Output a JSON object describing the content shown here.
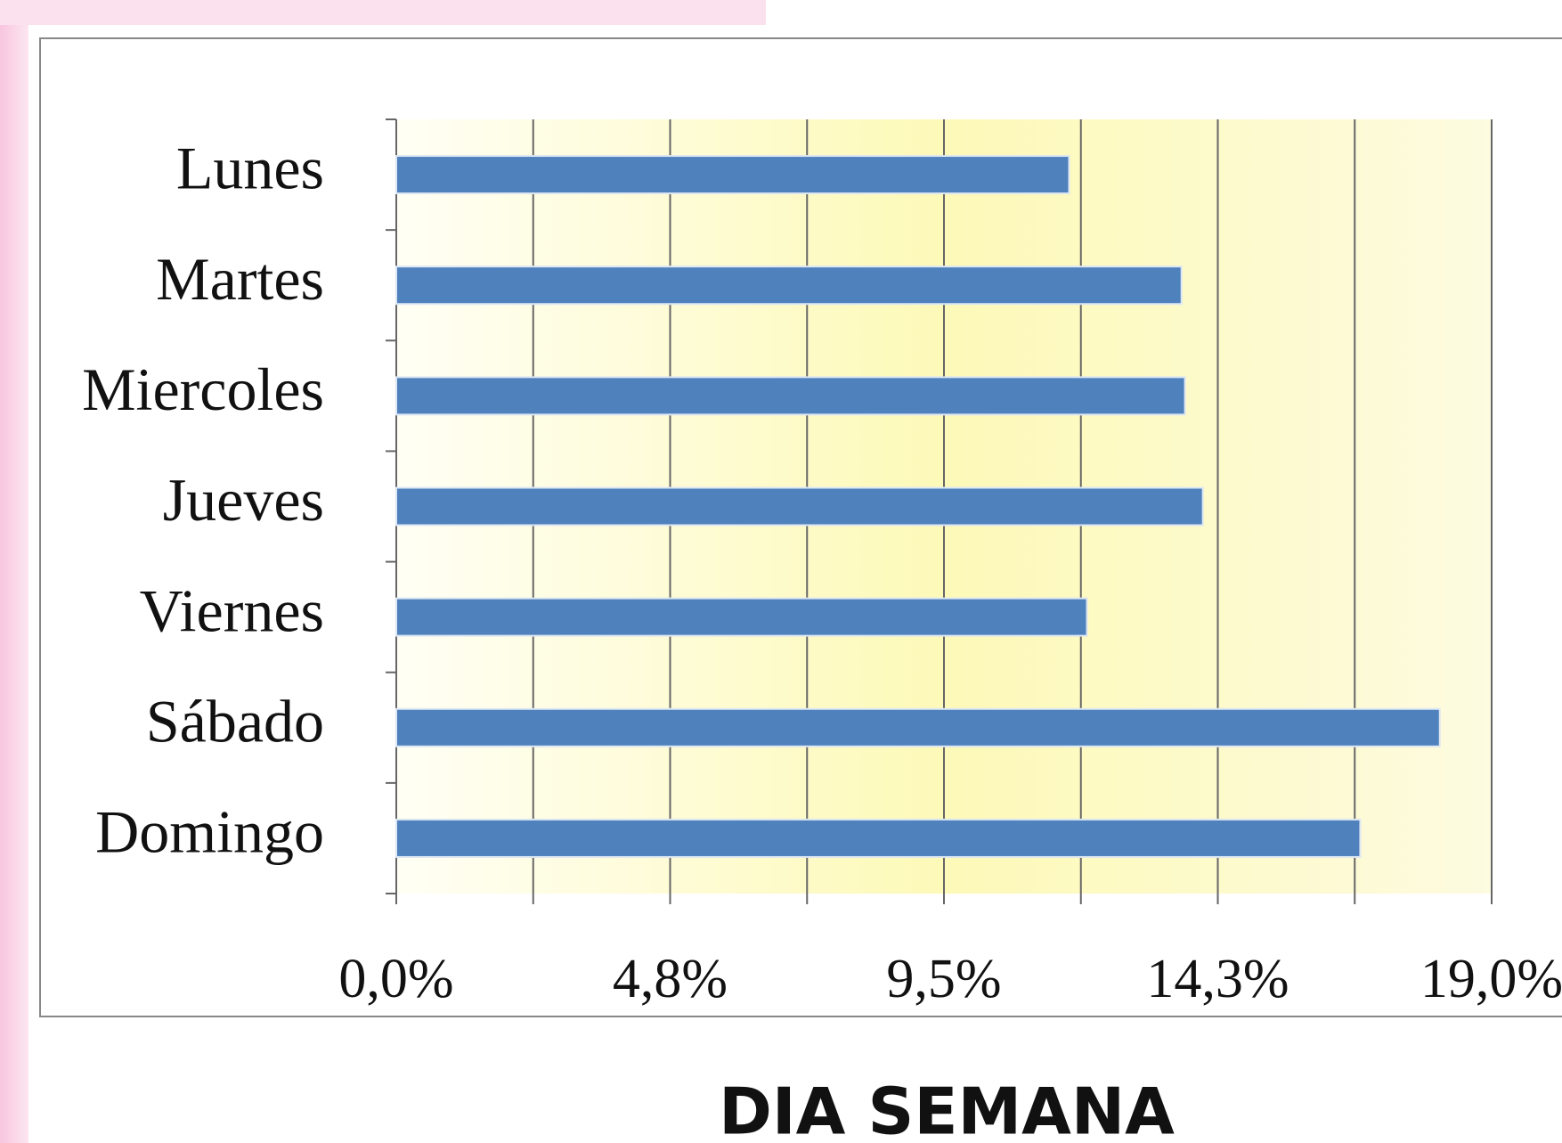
{
  "chart_data": {
    "type": "hbar",
    "title": "DIA SEMANA",
    "categories": [
      "Lunes",
      "Martes",
      "Miercoles",
      "Jueves",
      "Viernes",
      "Sábado",
      "Domingo"
    ],
    "values": [
      11.67,
      13.62,
      13.68,
      13.99,
      11.98,
      18.1,
      16.72
    ],
    "color": "#4f81bd",
    "xlim": [
      0,
      19
    ],
    "xticks": [
      {
        "value": 0,
        "label": "0,0%"
      },
      {
        "value": 4.75,
        "label": "4,8%"
      },
      {
        "value": 9.5,
        "label": "9,5%"
      },
      {
        "value": 14.25,
        "label": "14,3%"
      },
      {
        "value": 19,
        "label": "19,0%"
      }
    ],
    "xticks_minor": [
      2.375,
      7.125,
      11.875,
      16.625
    ],
    "grid": true
  }
}
